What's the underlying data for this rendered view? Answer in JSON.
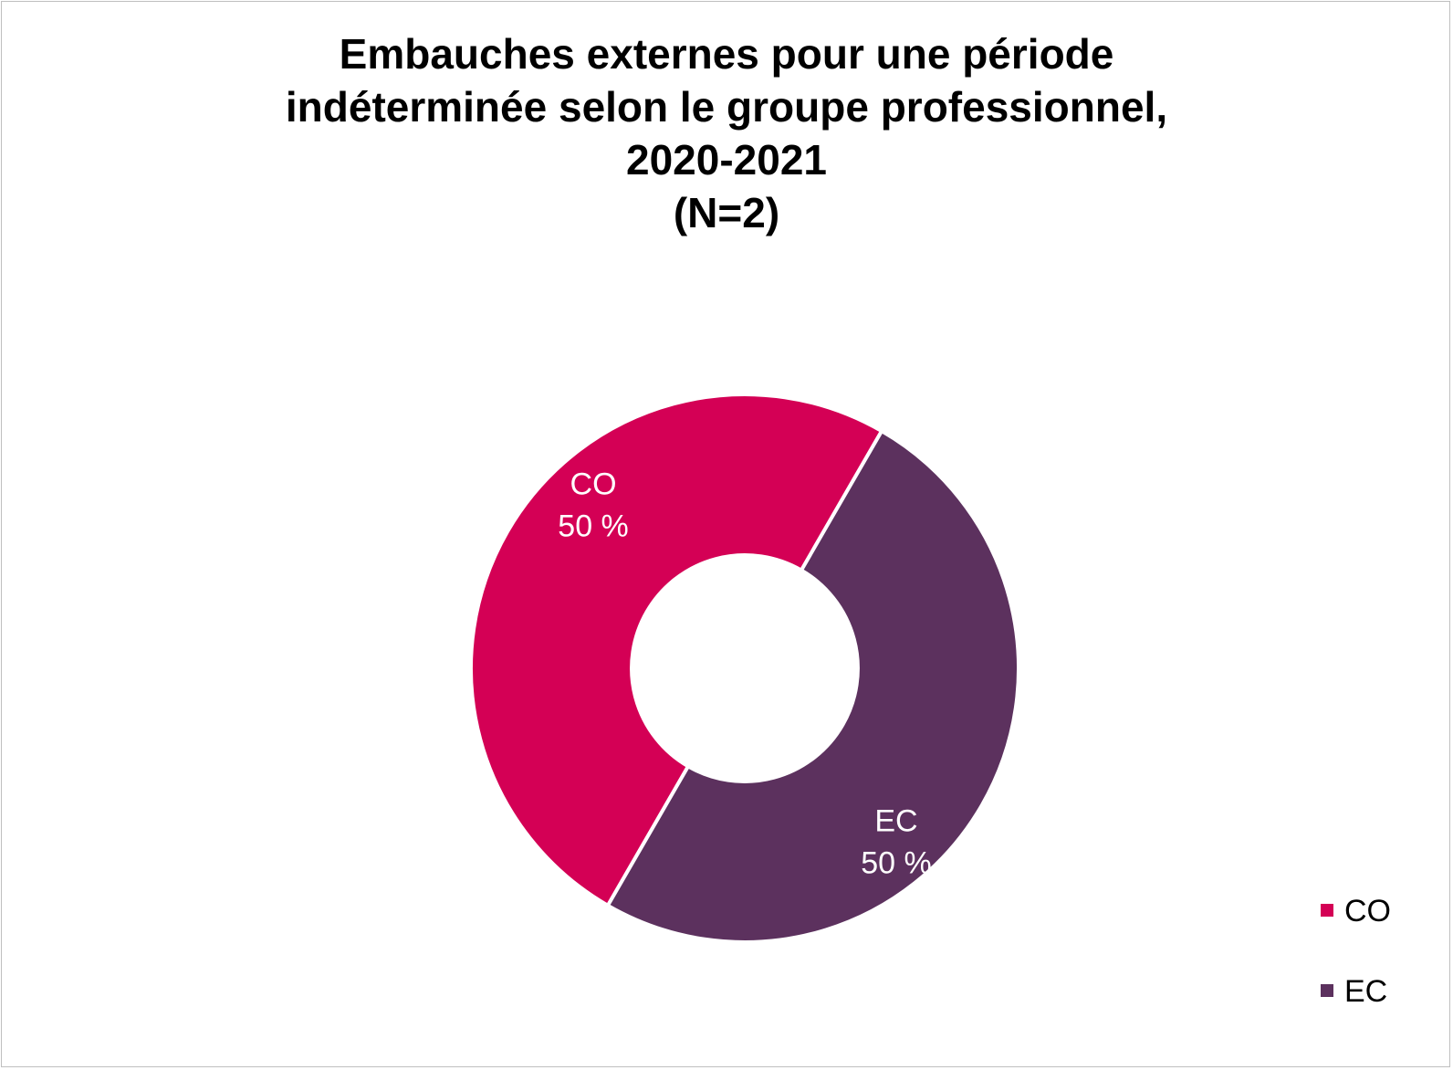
{
  "chart_data": {
    "type": "pie",
    "variant": "donut",
    "title_lines": [
      "Embauches externes pour une période",
      "indéterminée selon le groupe professionnel,",
      "2020-2021",
      "(N=2)"
    ],
    "slices": [
      {
        "name": "CO",
        "value": 50,
        "label": "50 %",
        "color": "#d40055"
      },
      {
        "name": "EC",
        "value": 50,
        "label": "50 %",
        "color": "#5c315e"
      }
    ],
    "legend": {
      "placement": "bottom-right",
      "entries": [
        "CO",
        "EC"
      ]
    }
  }
}
